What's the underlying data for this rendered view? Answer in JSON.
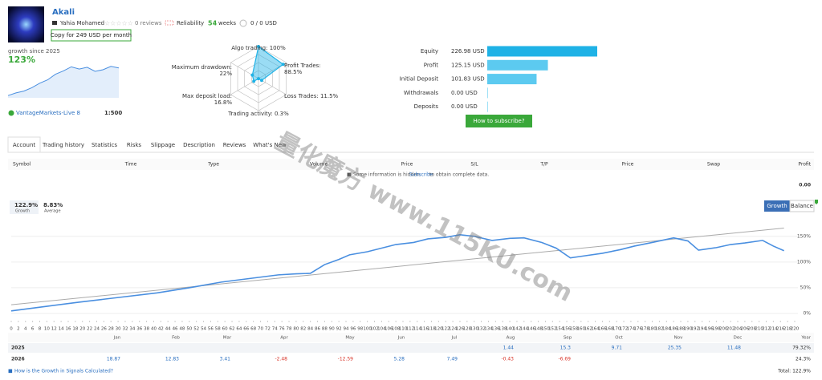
{
  "header": {
    "title": "Akali",
    "author": "Yahia Mohamed",
    "reviews": "0 reviews",
    "reliability": "Reliability",
    "weeks_value": "54",
    "weeks_label": "weeks",
    "subscribers": "0 / 0 USD",
    "copy_button": "Copy for 249 USD per month"
  },
  "mini_chart": {
    "label": "growth since 2025",
    "value_label": "123%",
    "values": [
      0,
      12,
      20,
      35,
      55,
      70,
      95,
      110,
      128,
      118,
      126,
      108,
      115,
      130,
      123
    ],
    "ylim": [
      -10,
      140
    ]
  },
  "account": {
    "broker": "VantageMarkets-Live 8",
    "leverage": "1:500"
  },
  "radar": {
    "axes": [
      {
        "label": "Algo trading: 100%",
        "value": 100
      },
      {
        "label": "Profit Trades: 88.5%",
        "value": 88.5
      },
      {
        "label": "Loss Trades: 11.5%",
        "value": 11.5
      },
      {
        "label": "Trading activity: 0.3%",
        "value": 0.3
      },
      {
        "label": "Max deposit load: 16.8%",
        "value": 16.8
      },
      {
        "label": "Maximum drawdown: 22%",
        "value": 22
      }
    ],
    "max": 100
  },
  "balance_bars": {
    "categories": [
      "Equity",
      "Profit",
      "Initial Deposit",
      "Withdrawals",
      "Deposits"
    ],
    "values": [
      226.98,
      125.15,
      101.83,
      0,
      0
    ],
    "value_labels": [
      "226.98 USD",
      "125.15 USD",
      "101.83 USD",
      "0.00 USD",
      "0.00 USD"
    ],
    "xlim": [
      0,
      227
    ],
    "colors": [
      "#1fb2e6",
      "#5ccaf0",
      "#5ccaf0",
      "#5ccaf0",
      "#5ccaf0"
    ]
  },
  "subscribe_button": "How to subscribe?",
  "tabs": [
    "Account",
    "Trading history",
    "Statistics",
    "Risks",
    "Slippage",
    "Description",
    "Reviews",
    "What's New"
  ],
  "trades_table": {
    "columns": [
      "Symbol",
      "Time",
      "Type",
      "Volume",
      "Price",
      "S/L",
      "T/P",
      "Price",
      "Swap",
      "Profit"
    ],
    "total": "0.00",
    "notice": "Some information is hidden.",
    "notice_link": "Subscribe",
    "notice_end": "to obtain complete data."
  },
  "chart_data": {
    "type": "line",
    "growth_value": "122.9%",
    "growth_label": "Growth",
    "average_value": "8.83%",
    "average_label": "Average",
    "buttons": [
      "Growth",
      "Balance"
    ],
    "x": [
      0,
      10,
      19,
      30,
      41,
      50,
      59,
      67,
      75,
      80,
      84,
      88,
      92,
      95,
      100,
      108,
      113,
      117,
      122,
      126,
      130,
      135,
      140,
      144,
      149,
      153,
      157,
      161,
      166,
      171,
      175,
      180,
      186,
      190,
      193,
      198,
      202,
      206,
      211,
      214,
      217
    ],
    "values": [
      5,
      14,
      22,
      31,
      40,
      50,
      61,
      68,
      75,
      77,
      78,
      95,
      105,
      114,
      120,
      134,
      138,
      145,
      148,
      153,
      150,
      142,
      146,
      147,
      138,
      127,
      108,
      112,
      117,
      124,
      131,
      138,
      147,
      141,
      123,
      128,
      134,
      137,
      142,
      131,
      122
    ],
    "color": "#4a8fe0",
    "trend": {
      "x": [
        0,
        217
      ],
      "values": [
        17,
        166
      ],
      "color": "#aaaaaa"
    },
    "xlim": [
      0,
      220
    ],
    "ylim": [
      -14,
      173
    ],
    "yticks": [
      {
        "value": 0,
        "label": "0%"
      },
      {
        "value": 50,
        "label": "50%"
      },
      {
        "value": 100,
        "label": "100%"
      },
      {
        "value": 150,
        "label": "150%"
      }
    ],
    "xticks": [
      0,
      2,
      4,
      6,
      8,
      10,
      12,
      14,
      16,
      18,
      20,
      22,
      24,
      26,
      28,
      30,
      32,
      34,
      36,
      38,
      40,
      42,
      44,
      46,
      48,
      50,
      52,
      54,
      56,
      58,
      60,
      62,
      64,
      66,
      68,
      70,
      72,
      74,
      76,
      78,
      80,
      82,
      84,
      86,
      88,
      90,
      92,
      94,
      96,
      98,
      100,
      102,
      104,
      106,
      108,
      110,
      112,
      114,
      116,
      118,
      120,
      122,
      124,
      126,
      128,
      130,
      132,
      134,
      136,
      138,
      140,
      142,
      144,
      146,
      148,
      150,
      152,
      154,
      156,
      158,
      160,
      162,
      164,
      166,
      168,
      170,
      172,
      174,
      176,
      178,
      180,
      182,
      184,
      186,
      188,
      190,
      192,
      194,
      196,
      198,
      200,
      202,
      204,
      206,
      208,
      210,
      212,
      214,
      216,
      218,
      220
    ],
    "grid": true
  },
  "year_table": {
    "columns": [
      "Jan",
      "Feb",
      "Mar",
      "Apr",
      "May",
      "Jun",
      "Jul",
      "Aug",
      "Sep",
      "Oct",
      "Nov",
      "Dec",
      "Year"
    ],
    "rows": [
      {
        "year": "2025",
        "cells": [
          null,
          null,
          null,
          null,
          null,
          null,
          null,
          "1.44",
          "15.3",
          "9.71",
          "25.35",
          "11.48",
          "79.32%"
        ]
      },
      {
        "year": "2026",
        "cells": [
          "18.87",
          "12.83",
          "3.41",
          "-2.48",
          "-12.59",
          "5.28",
          "7.49",
          "-0.43",
          "-6.69",
          null,
          null,
          null,
          "24.3%"
        ]
      }
    ]
  },
  "footer": {
    "help_link": "How is the Growth in Signals Calculated?",
    "total": "Total: 122.9%"
  },
  "watermark": "量化魔方 www.115KU.com"
}
